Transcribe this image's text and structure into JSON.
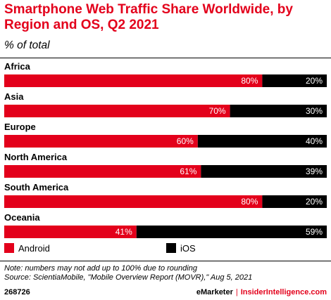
{
  "title": "Smartphone Web Traffic Share Worldwide, by Region and OS, Q2 2021",
  "subtitle": "% of total",
  "colors": {
    "android": "#e3001b",
    "ios": "#000000",
    "brand": "#e3001b"
  },
  "chart_data": {
    "type": "bar",
    "orientation": "horizontal",
    "stacked": true,
    "categories": [
      "Africa",
      "Asia",
      "Europe",
      "North America",
      "South America",
      "Oceania"
    ],
    "series": [
      {
        "name": "Android",
        "values": [
          80,
          70,
          60,
          61,
          80,
          41
        ]
      },
      {
        "name": "iOS",
        "values": [
          20,
          30,
          40,
          39,
          20,
          59
        ]
      }
    ],
    "value_suffix": "%",
    "xlim": [
      0,
      100
    ],
    "grid": false,
    "legend_position": "bottom"
  },
  "legend": {
    "android": "Android",
    "ios": "iOS"
  },
  "note": "Note: numbers may not add up to 100% due to rounding",
  "source": "Source: ScientiaMobile, \"Mobile Overview Report (MOVR),\" Aug 5, 2021",
  "footer": {
    "id": "268726",
    "brand": "eMarketer",
    "separator": "|",
    "site": "InsiderIntelligence.com"
  }
}
